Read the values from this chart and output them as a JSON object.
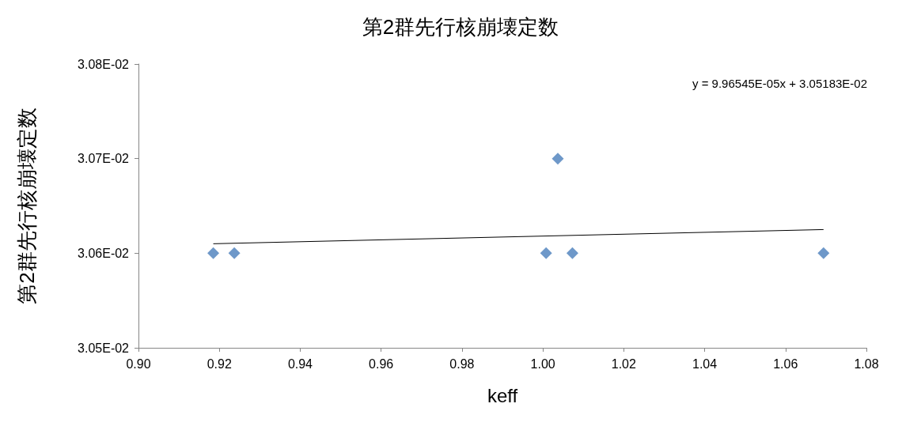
{
  "chart_data": {
    "type": "scatter",
    "title": "第2群先行核崩壊定数",
    "xlabel": "keff",
    "ylabel": "第2群先行核崩壊定数",
    "annotations": [
      "y = 9.96545E-05x + 3.05183E-02"
    ],
    "series": [
      {
        "color": "#4a7ebb",
        "marker": "diamond",
        "x": [
          0.9185,
          0.9237,
          1.0008,
          1.0037,
          1.0073,
          1.0694
        ],
        "values": [
          0.0306,
          0.0306,
          0.0306,
          0.0307,
          0.0306,
          0.0306
        ]
      },
      {
        "type": "line",
        "color": "#000000",
        "marker": "none",
        "x": [
          0.9185,
          1.0694
        ],
        "values": [
          0.03061,
          0.030625
        ]
      }
    ],
    "xlim": [
      0.9,
      1.08
    ],
    "xticks": [
      {
        "value": 0.9,
        "label": "0.90"
      },
      {
        "value": 0.92,
        "label": "0.92"
      },
      {
        "value": 0.94,
        "label": "0.94"
      },
      {
        "value": 0.96,
        "label": "0.96"
      },
      {
        "value": 0.98,
        "label": "0.98"
      },
      {
        "value": 1.0,
        "label": "1.00"
      },
      {
        "value": 1.02,
        "label": "1.02"
      },
      {
        "value": 1.04,
        "label": "1.04"
      },
      {
        "value": 1.06,
        "label": "1.06"
      },
      {
        "value": 1.08,
        "label": "1.08"
      }
    ],
    "ylim": [
      0.0305,
      0.0308
    ],
    "yticks": [
      {
        "value": 0.0305,
        "label": "3.05E-02"
      },
      {
        "value": 0.0306,
        "label": "3.06E-02"
      },
      {
        "value": 0.0307,
        "label": "3.07E-02"
      },
      {
        "value": 0.0308,
        "label": "3.08E-02"
      }
    ],
    "grid": false
  }
}
